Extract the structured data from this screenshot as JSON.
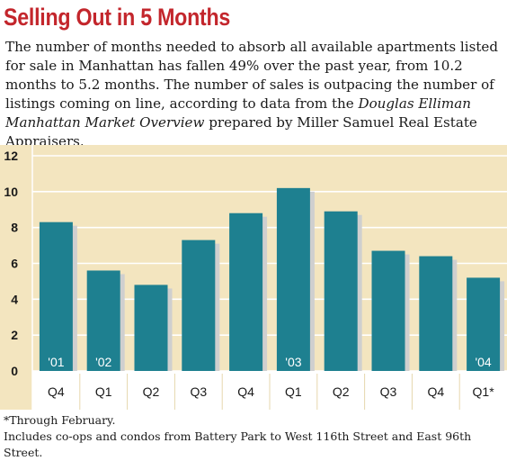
{
  "title": "Selling Out in 5 Months",
  "subtitle": {
    "part1": "The number of months needed to absorb all available apartments listed for sale in Manhattan has fallen 49% over the past year, from 10.2 months to 5.2 months. The number of sales is outpacing the number of listings coming on line, according to data from the ",
    "italic": "Douglas Elliman Manhattan Market Overview",
    "part2": " prepared by Miller Samuel Real Estate Appraisers."
  },
  "footnotes": [
    "*Through February.",
    "Includes co-ops and condos from Battery Park to West 116th Street and East 96th Street."
  ],
  "colors": {
    "bar": "#1e8090",
    "shadow": "#cfcfcf",
    "background": "#f3e5bf",
    "title": "#c3262c"
  },
  "chart_data": {
    "type": "bar",
    "title": "",
    "xlabel": "",
    "ylabel": "",
    "categories": [
      "Q4",
      "Q1",
      "Q2",
      "Q3",
      "Q4",
      "Q1",
      "Q2",
      "Q3",
      "Q4",
      "Q1*"
    ],
    "values": [
      8.3,
      5.6,
      4.8,
      7.3,
      8.8,
      10.2,
      8.9,
      6.7,
      6.4,
      5.2
    ],
    "year_labels": [
      "'01",
      "'02",
      "",
      "",
      "",
      "'03",
      "",
      "",
      "",
      "'04"
    ],
    "yticks": [
      0,
      2,
      4,
      6,
      8,
      10,
      12
    ],
    "ylim": [
      0,
      12
    ],
    "grid": true,
    "legend": "none"
  }
}
